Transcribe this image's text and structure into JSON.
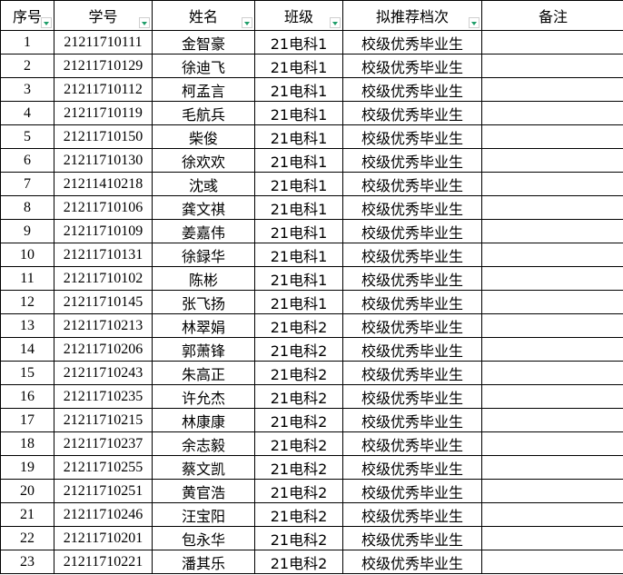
{
  "headers": [
    {
      "label": "序号",
      "filter": true
    },
    {
      "label": "学号",
      "filter": true
    },
    {
      "label": "姓名",
      "filter": true
    },
    {
      "label": "班级",
      "filter": true
    },
    {
      "label": "拟推荐档次",
      "filter": true
    },
    {
      "label": "备注",
      "filter": false
    }
  ],
  "rows": [
    [
      "1",
      "21211710111",
      "金智豪",
      "21电科1",
      "校级优秀毕业生",
      ""
    ],
    [
      "2",
      "21211710129",
      "徐迪飞",
      "21电科1",
      "校级优秀毕业生",
      ""
    ],
    [
      "3",
      "21211710112",
      "柯孟言",
      "21电科1",
      "校级优秀毕业生",
      ""
    ],
    [
      "4",
      "21211710119",
      "毛航兵",
      "21电科1",
      "校级优秀毕业生",
      ""
    ],
    [
      "5",
      "21211710150",
      "柴俊",
      "21电科1",
      "校级优秀毕业生",
      ""
    ],
    [
      "6",
      "21211710130",
      "徐欢欢",
      "21电科1",
      "校级优秀毕业生",
      ""
    ],
    [
      "7",
      "21211410218",
      "沈彧",
      "21电科1",
      "校级优秀毕业生",
      ""
    ],
    [
      "8",
      "21211710106",
      "龚文祺",
      "21电科1",
      "校级优秀毕业生",
      ""
    ],
    [
      "9",
      "21211710109",
      "姜嘉伟",
      "21电科1",
      "校级优秀毕业生",
      ""
    ],
    [
      "10",
      "21211710131",
      "徐録华",
      "21电科1",
      "校级优秀毕业生",
      ""
    ],
    [
      "11",
      "21211710102",
      "陈彬",
      "21电科1",
      "校级优秀毕业生",
      ""
    ],
    [
      "12",
      "21211710145",
      "张飞扬",
      "21电科1",
      "校级优秀毕业生",
      ""
    ],
    [
      "13",
      "21211710213",
      "林翠娟",
      "21电科2",
      "校级优秀毕业生",
      ""
    ],
    [
      "14",
      "21211710206",
      "郭萧锋",
      "21电科2",
      "校级优秀毕业生",
      ""
    ],
    [
      "15",
      "21211710243",
      "朱高正",
      "21电科2",
      "校级优秀毕业生",
      ""
    ],
    [
      "16",
      "21211710235",
      "许允杰",
      "21电科2",
      "校级优秀毕业生",
      ""
    ],
    [
      "17",
      "21211710215",
      "林康康",
      "21电科2",
      "校级优秀毕业生",
      ""
    ],
    [
      "18",
      "21211710237",
      "余志毅",
      "21电科2",
      "校级优秀毕业生",
      ""
    ],
    [
      "19",
      "21211710255",
      "蔡文凯",
      "21电科2",
      "校级优秀毕业生",
      ""
    ],
    [
      "20",
      "21211710251",
      "黄官浩",
      "21电科2",
      "校级优秀毕业生",
      ""
    ],
    [
      "21",
      "21211710246",
      "汪宝阳",
      "21电科2",
      "校级优秀毕业生",
      ""
    ],
    [
      "22",
      "21211710201",
      "包永华",
      "21电科2",
      "校级优秀毕业生",
      ""
    ],
    [
      "23",
      "21211710221",
      "潘其乐",
      "21电科2",
      "校级优秀毕业生",
      ""
    ]
  ]
}
